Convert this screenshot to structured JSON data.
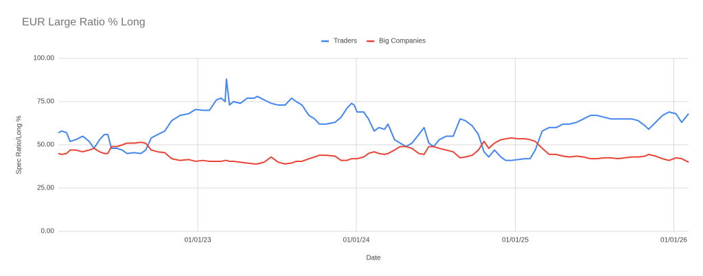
{
  "chart_data": {
    "type": "line",
    "title": "EUR Large Ratio % Long",
    "x_label": "Date",
    "y_label": "Spec Ratio/Long %",
    "x": [
      "2022-02-14",
      "2022-02-22",
      "2022-03-05",
      "2022-03-13",
      "2022-03-26",
      "2022-04-11",
      "2022-04-26",
      "2022-05-07",
      "2022-05-20",
      "2022-05-31",
      "2022-06-08",
      "2022-06-16",
      "2022-06-29",
      "2022-07-11",
      "2022-07-22",
      "2022-08-07",
      "2022-08-23",
      "2022-09-03",
      "2022-09-16",
      "2022-10-01",
      "2022-10-17",
      "2022-11-02",
      "2022-11-21",
      "2022-12-11",
      "2022-12-27",
      "2023-01-12",
      "2023-01-28",
      "2023-02-13",
      "2023-02-24",
      "2023-03-05",
      "2023-03-08",
      "2023-03-15",
      "2023-03-24",
      "2023-04-09",
      "2023-04-25",
      "2023-05-11",
      "2023-05-18",
      "2023-06-03",
      "2023-06-19",
      "2023-07-05",
      "2023-07-21",
      "2023-08-05",
      "2023-08-16",
      "2023-08-29",
      "2023-09-14",
      "2023-09-27",
      "2023-10-08",
      "2023-10-23",
      "2023-11-13",
      "2023-11-27",
      "2023-12-10",
      "2023-12-21",
      "2023-12-27",
      "2024-01-03",
      "2024-01-18",
      "2024-01-29",
      "2024-02-11",
      "2024-02-22",
      "2024-03-06",
      "2024-03-14",
      "2024-03-29",
      "2024-04-11",
      "2024-04-25",
      "2024-05-08",
      "2024-05-24",
      "2024-06-05",
      "2024-06-16",
      "2024-06-27",
      "2024-07-10",
      "2024-07-26",
      "2024-08-11",
      "2024-08-27",
      "2024-09-08",
      "2024-09-24",
      "2024-10-08",
      "2024-10-21",
      "2024-11-01",
      "2024-11-14",
      "2024-11-29",
      "2024-12-10",
      "2024-12-23",
      "2025-01-08",
      "2025-01-24",
      "2025-02-04",
      "2025-02-16",
      "2025-03-04",
      "2025-03-20",
      "2025-04-05",
      "2025-04-21",
      "2025-05-06",
      "2025-05-22",
      "2025-06-07",
      "2025-06-23",
      "2025-07-09",
      "2025-07-24",
      "2025-08-09",
      "2025-08-25",
      "2025-09-10",
      "2025-09-26",
      "2025-10-11",
      "2025-10-27",
      "2025-11-04",
      "2025-11-20",
      "2025-12-06",
      "2025-12-21",
      "2026-01-06",
      "2026-01-19",
      "2026-02-04"
    ],
    "xlim": [
      "2022-02-14",
      "2026-02-04"
    ],
    "xticks": [
      {
        "value": "2023-01-01",
        "label": "01/01/23"
      },
      {
        "value": "2024-01-01",
        "label": "01/01/24"
      },
      {
        "value": "2025-01-01",
        "label": "01/01/25"
      },
      {
        "value": "2026-01-01",
        "label": "01/01/26"
      }
    ],
    "ylim": [
      0,
      100
    ],
    "yticks": [
      {
        "value": 0,
        "label": "0.00"
      },
      {
        "value": 25,
        "label": "25.00"
      },
      {
        "value": 50,
        "label": "50.00"
      },
      {
        "value": 75,
        "label": "75.00"
      },
      {
        "value": 100,
        "label": "100.00"
      }
    ],
    "grid": true,
    "legend": "top",
    "series": [
      {
        "name": "Traders",
        "color": "#4285f4",
        "values": [
          57,
          58,
          57,
          52,
          53,
          55,
          52,
          48,
          53,
          56,
          56,
          48,
          48,
          47,
          45,
          45.5,
          45,
          47,
          54,
          56,
          58,
          64,
          67,
          68,
          70.5,
          70,
          70,
          76,
          77,
          75,
          88,
          73,
          75,
          74,
          77,
          77,
          78,
          76,
          74,
          73,
          73,
          77,
          75,
          73,
          67,
          65,
          62,
          62,
          63,
          66,
          71,
          74,
          73,
          69,
          69,
          65,
          58,
          60,
          59,
          62,
          53,
          51,
          49,
          51,
          56,
          60,
          51,
          49,
          53,
          55,
          55,
          65,
          64,
          61,
          56,
          46,
          43,
          47,
          43,
          41,
          41,
          41.5,
          42,
          42,
          47,
          58,
          60,
          60,
          62,
          62,
          63,
          65,
          67,
          67,
          66,
          65,
          65,
          65,
          65,
          64,
          61,
          59,
          63,
          67,
          69,
          68,
          63,
          68
        ]
      },
      {
        "name": "Big Companies",
        "color": "#ea4335",
        "values": [
          45,
          44.5,
          45,
          47,
          47,
          46,
          47,
          48,
          46,
          45,
          45,
          49,
          49,
          50,
          51,
          51,
          51.5,
          51,
          47,
          46,
          45.5,
          42,
          41,
          41.5,
          40.5,
          41,
          40.5,
          40.5,
          40.5,
          41,
          41,
          40.5,
          40.5,
          40,
          39.5,
          39,
          39,
          40,
          43,
          40,
          39,
          39.5,
          40.5,
          40.5,
          42,
          43,
          44,
          44,
          43.5,
          41,
          41,
          42,
          42,
          42,
          43,
          45,
          46,
          45,
          44.5,
          45,
          47,
          49,
          49,
          48,
          45,
          44.5,
          49,
          49,
          48,
          47,
          46,
          42.5,
          43,
          44,
          47,
          52,
          48,
          51,
          53,
          53.5,
          54,
          53.5,
          53.5,
          53,
          52,
          48,
          44.5,
          44.5,
          43.5,
          43,
          43.5,
          43,
          42,
          42,
          42.5,
          42.5,
          42,
          42.5,
          43,
          43,
          43.5,
          44.5,
          43.5,
          42,
          41,
          42.5,
          42,
          40
        ]
      }
    ]
  }
}
